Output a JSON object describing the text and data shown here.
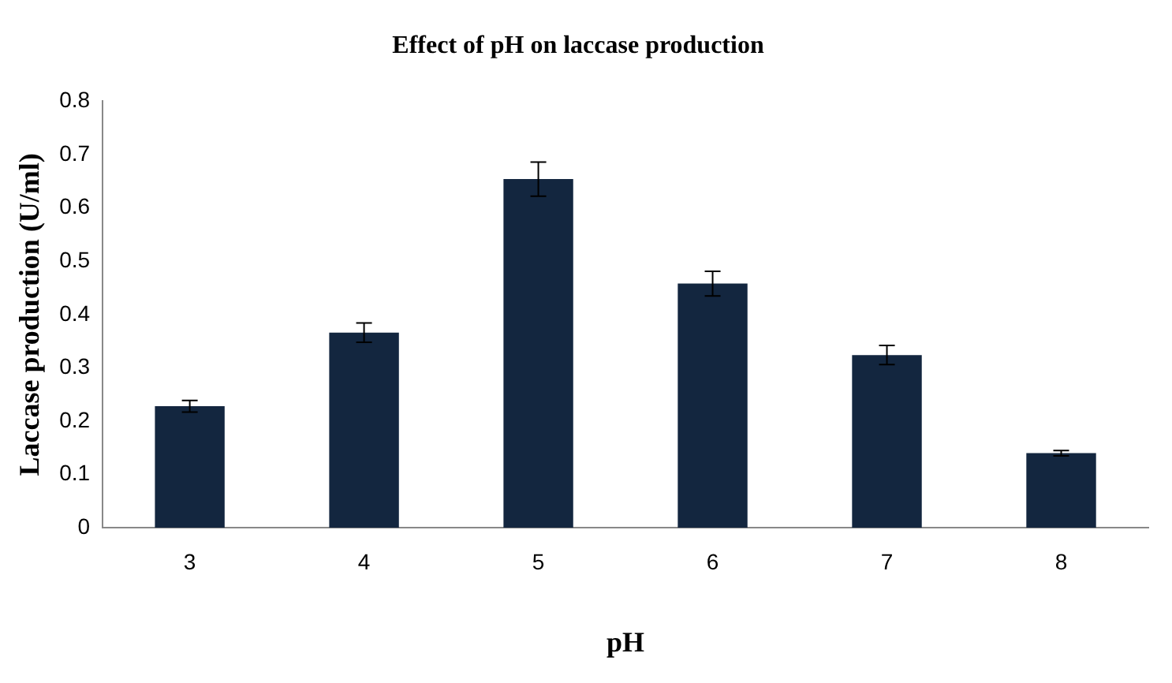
{
  "chart_data": {
    "type": "bar",
    "title": "Effect of pH on laccase production",
    "xlabel": "pH",
    "ylabel": "Laccase production (U/ml)",
    "categories": [
      "3",
      "4",
      "5",
      "6",
      "7",
      "8"
    ],
    "values": [
      0.228,
      0.366,
      0.654,
      0.458,
      0.324,
      0.14
    ],
    "errors": [
      0.011,
      0.018,
      0.032,
      0.023,
      0.018,
      0.005
    ],
    "color": "#13263f",
    "ylim": [
      0,
      0.8
    ],
    "yticks": [
      0,
      0.1,
      0.2,
      0.3,
      0.4,
      0.5,
      0.6,
      0.7,
      0.8
    ],
    "grid": false,
    "legend": false
  }
}
